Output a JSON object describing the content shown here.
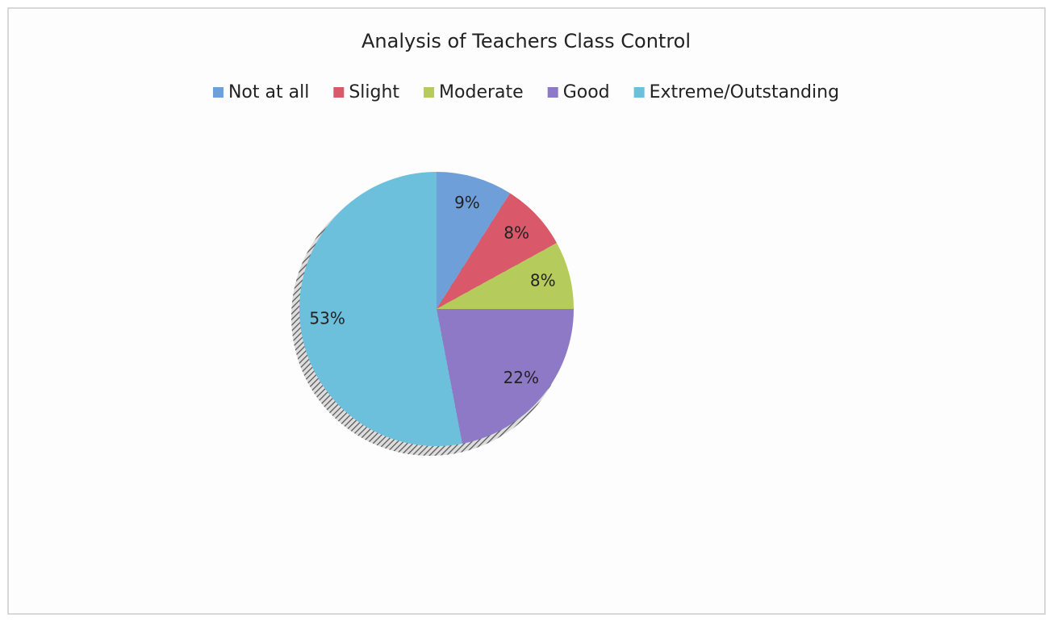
{
  "chart_data": {
    "type": "pie",
    "title": "Analysis of Teachers Class Control",
    "categories": [
      "Not at all",
      "Slight",
      "Moderate",
      "Good",
      "Extreme/Outstanding"
    ],
    "values": [
      9,
      8,
      8,
      22,
      53
    ],
    "value_labels": [
      "9%",
      "8%",
      "8%",
      "22%",
      "53%"
    ],
    "colors": [
      "#6f9fd8",
      "#d9596a",
      "#b5cc5c",
      "#8e79c6",
      "#6cc0dc"
    ],
    "legend": "top"
  }
}
